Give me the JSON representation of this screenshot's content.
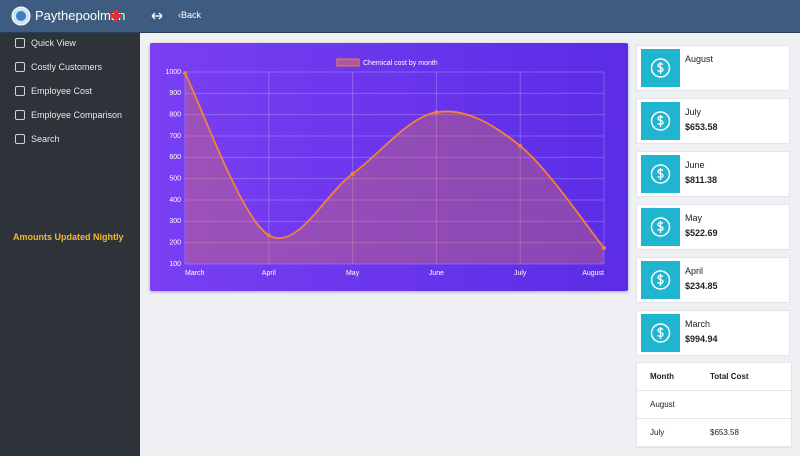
{
  "header": {
    "brand": "Paythepoolman",
    "back": "‹Back"
  },
  "sidebar": {
    "items": [
      "Quick View",
      "Costly Customers",
      "Employee Cost",
      "Employee Comparison",
      "Search"
    ],
    "notice": "Amounts Updated Nightly"
  },
  "chart_data": {
    "type": "line",
    "categories": [
      "March",
      "April",
      "May",
      "June",
      "July",
      "August"
    ],
    "series": [
      {
        "name": "Chemical cost by month",
        "color": "#f2823a",
        "values": [
          994.94,
          234.85,
          522.69,
          811.38,
          653.58,
          175
        ]
      }
    ],
    "ylim": [
      100,
      1000
    ],
    "yticks": [
      100,
      200,
      300,
      400,
      500,
      600,
      700,
      800,
      900,
      1000
    ],
    "grid": true,
    "legend": "top"
  },
  "cards": [
    {
      "month": "August"
    },
    {
      "month": "July",
      "amount": "$653.58"
    },
    {
      "month": "June",
      "amount": "$811.38"
    },
    {
      "month": "May",
      "amount": "$522.69"
    },
    {
      "month": "April",
      "amount": "$234.85"
    },
    {
      "month": "March",
      "amount": "$994.94"
    }
  ],
  "table": {
    "columns": [
      "Month",
      "Total Cost"
    ],
    "rows": [
      [
        "August"
      ],
      [
        "July",
        "$653.58"
      ]
    ]
  }
}
